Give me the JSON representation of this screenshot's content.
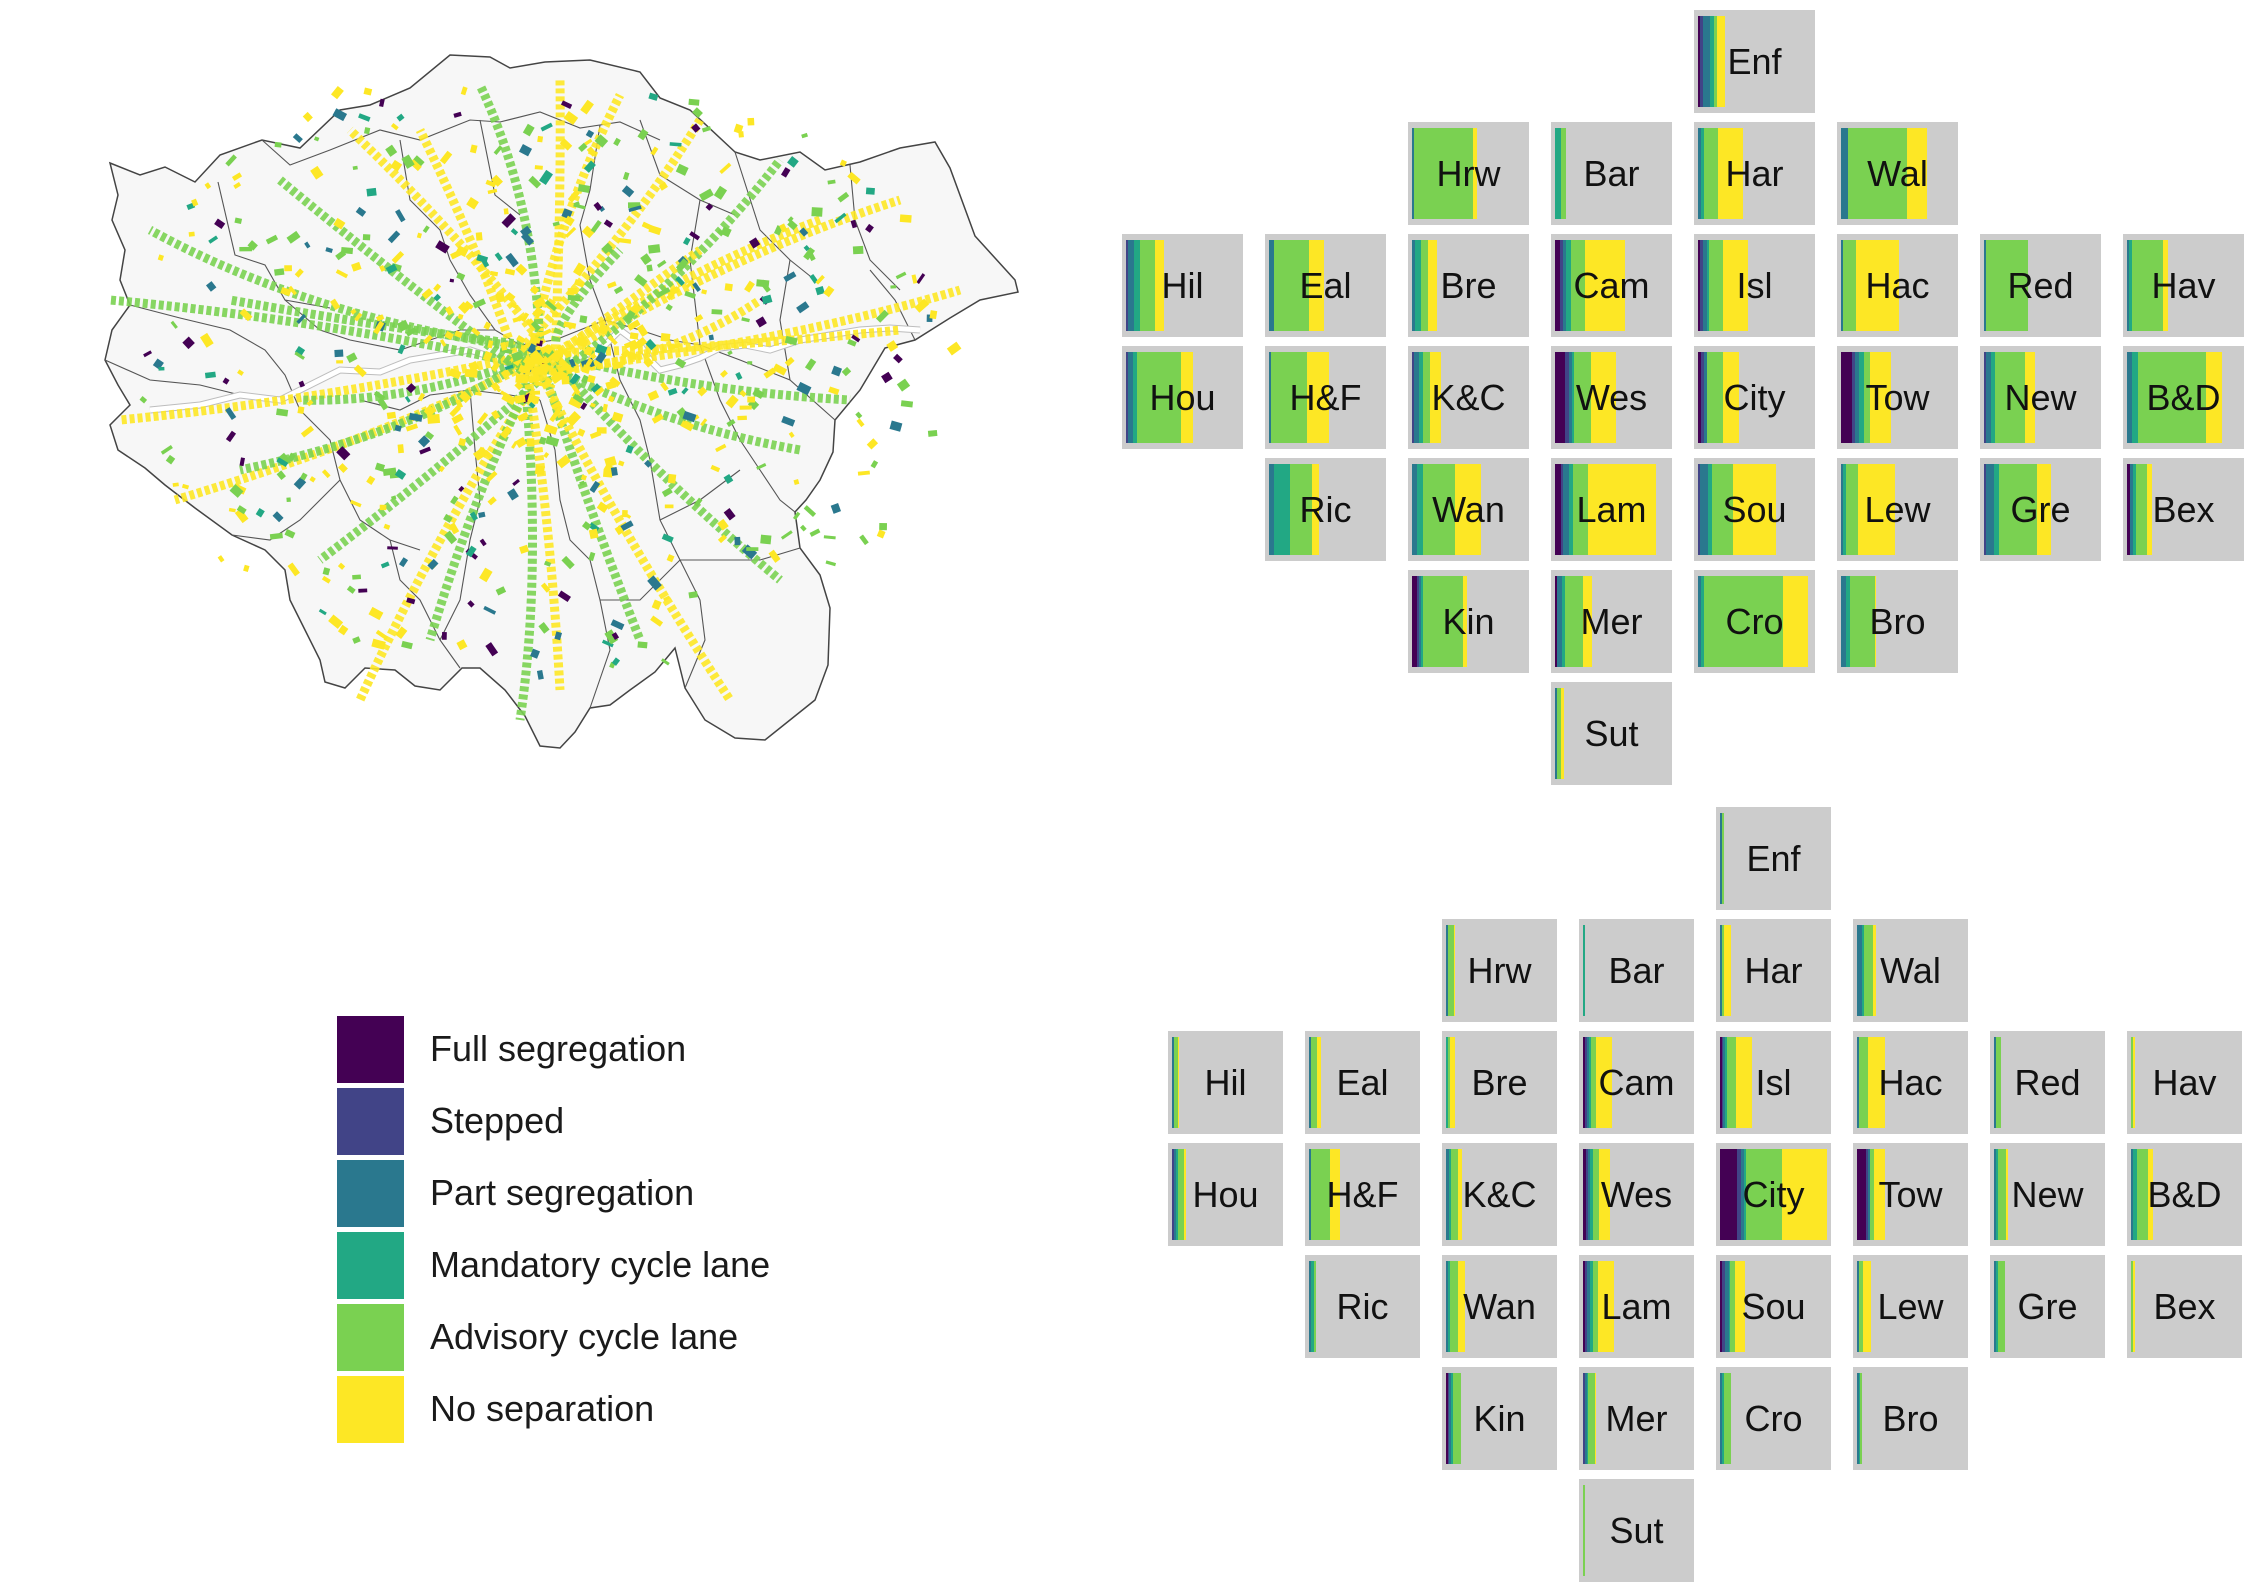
{
  "colors": {
    "full": "#440154",
    "stepped": "#414487",
    "part": "#2a788e",
    "mandatory": "#22a884",
    "advisory": "#7ad151",
    "none": "#fde725",
    "tile_bg": "#cccccc",
    "borough_fill": "#f7f7f7",
    "borough_stroke": "#444444",
    "river": "#ffffff"
  },
  "legend": [
    {
      "key": "full",
      "label": "Full segregation"
    },
    {
      "key": "stepped",
      "label": "Stepped"
    },
    {
      "key": "part",
      "label": "Part segregation"
    },
    {
      "key": "mandatory",
      "label": "Mandatory cycle lane"
    },
    {
      "key": "advisory",
      "label": "Advisory cycle lane"
    },
    {
      "key": "none",
      "label": "No separation"
    }
  ],
  "grids": [
    {
      "name": "top-grid",
      "boroughs": [
        {
          "label": "Enf",
          "row": 0,
          "col": 4,
          "shares": {
            "full": 0.02,
            "stepped": 0.02,
            "part": 0.07,
            "mandatory": 0.03,
            "advisory": 0.03,
            "none": 0.07
          }
        },
        {
          "label": "Hrw",
          "row": 1,
          "col": 2,
          "shares": {
            "full": 0,
            "stepped": 0,
            "part": 0.01,
            "mandatory": 0,
            "advisory": 0.53,
            "none": 0.03
          }
        },
        {
          "label": "Bar",
          "row": 1,
          "col": 3,
          "shares": {
            "full": 0,
            "stepped": 0,
            "part": 0,
            "mandatory": 0.05,
            "advisory": 0.05,
            "none": 0
          }
        },
        {
          "label": "Har",
          "row": 1,
          "col": 4,
          "shares": {
            "full": 0,
            "stepped": 0,
            "part": 0.03,
            "mandatory": 0.02,
            "advisory": 0.13,
            "none": 0.22
          }
        },
        {
          "label": "Wal",
          "row": 1,
          "col": 5,
          "shares": {
            "full": 0,
            "stepped": 0,
            "part": 0.06,
            "mandatory": 0,
            "advisory": 0.52,
            "none": 0.18
          }
        },
        {
          "label": "Hil",
          "row": 2,
          "col": 0,
          "shares": {
            "full": 0,
            "stepped": 0.02,
            "part": 0.05,
            "mandatory": 0.05,
            "advisory": 0.14,
            "none": 0.08
          }
        },
        {
          "label": "Eal",
          "row": 2,
          "col": 1,
          "shares": {
            "full": 0,
            "stepped": 0,
            "part": 0.04,
            "mandatory": 0,
            "advisory": 0.31,
            "none": 0.14
          }
        },
        {
          "label": "Bre",
          "row": 2,
          "col": 2,
          "shares": {
            "full": 0,
            "stepped": 0,
            "part": 0.03,
            "mandatory": 0.05,
            "advisory": 0.06,
            "none": 0.08
          }
        },
        {
          "label": "Cam",
          "row": 2,
          "col": 3,
          "shares": {
            "full": 0.04,
            "stepped": 0.03,
            "part": 0.03,
            "mandatory": 0.04,
            "advisory": 0.13,
            "none": 0.35
          }
        },
        {
          "label": "Isl",
          "row": 2,
          "col": 4,
          "shares": {
            "full": 0.02,
            "stepped": 0.02,
            "part": 0.04,
            "mandatory": 0.02,
            "advisory": 0.12,
            "none": 0.22
          }
        },
        {
          "label": "Hac",
          "row": 2,
          "col": 5,
          "shares": {
            "full": 0,
            "stepped": 0,
            "part": 0.02,
            "mandatory": 0,
            "advisory": 0.11,
            "none": 0.38
          }
        },
        {
          "label": "Red",
          "row": 2,
          "col": 6,
          "shares": {
            "full": 0,
            "stepped": 0,
            "part": 0.02,
            "mandatory": 0,
            "advisory": 0.37,
            "none": 0
          }
        },
        {
          "label": "Hav",
          "row": 2,
          "col": 7,
          "shares": {
            "full": 0,
            "stepped": 0,
            "part": 0.02,
            "mandatory": 0.02,
            "advisory": 0.28,
            "none": 0.04
          }
        },
        {
          "label": "Hou",
          "row": 3,
          "col": 0,
          "shares": {
            "full": 0,
            "stepped": 0.02,
            "part": 0.04,
            "mandatory": 0.04,
            "advisory": 0.39,
            "none": 0.1
          }
        },
        {
          "label": "H&F",
          "row": 3,
          "col": 1,
          "shares": {
            "full": 0,
            "stepped": 0,
            "part": 0.02,
            "mandatory": 0,
            "advisory": 0.32,
            "none": 0.19
          }
        },
        {
          "label": "K&C",
          "row": 3,
          "col": 2,
          "shares": {
            "full": 0,
            "stepped": 0.02,
            "part": 0.04,
            "mandatory": 0.04,
            "advisory": 0.06,
            "none": 0.1
          }
        },
        {
          "label": "Wes",
          "row": 3,
          "col": 3,
          "shares": {
            "full": 0.09,
            "stepped": 0.03,
            "part": 0.03,
            "mandatory": 0.02,
            "advisory": 0.15,
            "none": 0.22
          }
        },
        {
          "label": "City",
          "row": 3,
          "col": 4,
          "shares": {
            "full": 0.03,
            "stepped": 0.02,
            "part": 0.03,
            "mandatory": 0,
            "advisory": 0.14,
            "none": 0.14
          }
        },
        {
          "label": "Tow",
          "row": 3,
          "col": 5,
          "shares": {
            "full": 0.1,
            "stepped": 0.02,
            "part": 0.04,
            "mandatory": 0.04,
            "advisory": 0.06,
            "none": 0.18
          }
        },
        {
          "label": "New",
          "row": 3,
          "col": 6,
          "shares": {
            "full": 0,
            "stepped": 0.02,
            "part": 0.04,
            "mandatory": 0.04,
            "advisory": 0.26,
            "none": 0.09
          }
        },
        {
          "label": "B&D",
          "row": 3,
          "col": 7,
          "shares": {
            "full": 0,
            "stepped": 0,
            "part": 0.04,
            "mandatory": 0.06,
            "advisory": 0.6,
            "none": 0.14
          }
        },
        {
          "label": "Ric",
          "row": 4,
          "col": 1,
          "shares": {
            "full": 0,
            "stepped": 0,
            "part": 0.04,
            "mandatory": 0.15,
            "advisory": 0.19,
            "none": 0.06
          }
        },
        {
          "label": "Wan",
          "row": 4,
          "col": 2,
          "shares": {
            "full": 0,
            "stepped": 0,
            "part": 0.04,
            "mandatory": 0.06,
            "advisory": 0.28,
            "none": 0.23
          }
        },
        {
          "label": "Lam",
          "row": 4,
          "col": 3,
          "shares": {
            "full": 0.05,
            "stepped": 0.02,
            "part": 0.05,
            "mandatory": 0.04,
            "advisory": 0.13,
            "none": 0.6
          }
        },
        {
          "label": "Sou",
          "row": 4,
          "col": 4,
          "shares": {
            "full": 0,
            "stepped": 0.02,
            "part": 0.07,
            "mandatory": 0.03,
            "advisory": 0.19,
            "none": 0.38
          }
        },
        {
          "label": "Lew",
          "row": 4,
          "col": 5,
          "shares": {
            "full": 0,
            "stepped": 0,
            "part": 0.02,
            "mandatory": 0.02,
            "advisory": 0.11,
            "none": 0.33
          }
        },
        {
          "label": "Gre",
          "row": 4,
          "col": 6,
          "shares": {
            "full": 0,
            "stepped": 0.02,
            "part": 0.07,
            "mandatory": 0.04,
            "advisory": 0.34,
            "none": 0.12
          }
        },
        {
          "label": "Bex",
          "row": 4,
          "col": 7,
          "shares": {
            "full": 0.03,
            "stepped": 0,
            "part": 0.02,
            "mandatory": 0.03,
            "advisory": 0.1,
            "none": 0.04
          }
        },
        {
          "label": "Kin",
          "row": 5,
          "col": 2,
          "shares": {
            "full": 0.04,
            "stepped": 0.02,
            "part": 0.02,
            "mandatory": 0.02,
            "advisory": 0.35,
            "none": 0.04
          }
        },
        {
          "label": "Mer",
          "row": 5,
          "col": 3,
          "shares": {
            "full": 0.02,
            "stepped": 0,
            "part": 0.04,
            "mandatory": 0.03,
            "advisory": 0.16,
            "none": 0.08
          }
        },
        {
          "label": "Cro",
          "row": 5,
          "col": 4,
          "shares": {
            "full": 0,
            "stepped": 0,
            "part": 0.03,
            "mandatory": 0.02,
            "advisory": 0.7,
            "none": 0.22
          }
        },
        {
          "label": "Bro",
          "row": 5,
          "col": 5,
          "shares": {
            "full": 0,
            "stepped": 0,
            "part": 0.04,
            "mandatory": 0.04,
            "advisory": 0.22,
            "none": 0.01
          }
        },
        {
          "label": "Sut",
          "row": 6,
          "col": 3,
          "shares": {
            "full": 0,
            "stepped": 0,
            "part": 0.01,
            "mandatory": 0,
            "advisory": 0.04,
            "none": 0.03
          }
        }
      ]
    },
    {
      "name": "bottom-grid",
      "boroughs": [
        {
          "label": "Enf",
          "row": 0,
          "col": 4,
          "shares": {
            "full": 0,
            "stepped": 0,
            "part": 0.01,
            "mandatory": 0,
            "advisory": 0.02,
            "none": 0
          }
        },
        {
          "label": "Hrw",
          "row": 1,
          "col": 2,
          "shares": {
            "full": 0,
            "stepped": 0,
            "part": 0.01,
            "mandatory": 0,
            "advisory": 0.06,
            "none": 0.01
          }
        },
        {
          "label": "Bar",
          "row": 1,
          "col": 3,
          "shares": {
            "full": 0,
            "stepped": 0,
            "part": 0,
            "mandatory": 0.02,
            "advisory": 0,
            "none": 0
          }
        },
        {
          "label": "Har",
          "row": 1,
          "col": 4,
          "shares": {
            "full": 0,
            "stepped": 0,
            "part": 0.01,
            "mandatory": 0,
            "advisory": 0.02,
            "none": 0.07
          }
        },
        {
          "label": "Wal",
          "row": 1,
          "col": 5,
          "shares": {
            "full": 0,
            "stepped": 0,
            "part": 0.05,
            "mandatory": 0.01,
            "advisory": 0.09,
            "none": 0.02
          }
        },
        {
          "label": "Hil",
          "row": 2,
          "col": 0,
          "shares": {
            "full": 0,
            "stepped": 0,
            "part": 0.01,
            "mandatory": 0,
            "advisory": 0.04,
            "none": 0.01
          }
        },
        {
          "label": "Eal",
          "row": 2,
          "col": 1,
          "shares": {
            "full": 0,
            "stepped": 0,
            "part": 0.01,
            "mandatory": 0,
            "advisory": 0.06,
            "none": 0.04
          }
        },
        {
          "label": "Bre",
          "row": 2,
          "col": 2,
          "shares": {
            "full": 0,
            "stepped": 0,
            "part": 0,
            "mandatory": 0.02,
            "advisory": 0.02,
            "none": 0.04
          }
        },
        {
          "label": "Cam",
          "row": 2,
          "col": 3,
          "shares": {
            "full": 0.01,
            "stepped": 0.02,
            "part": 0.02,
            "mandatory": 0.02,
            "advisory": 0.05,
            "none": 0.15
          }
        },
        {
          "label": "Isl",
          "row": 2,
          "col": 4,
          "shares": {
            "full": 0.01,
            "stepped": 0.01,
            "part": 0.02,
            "mandatory": 0.01,
            "advisory": 0.09,
            "none": 0.15
          }
        },
        {
          "label": "Hac",
          "row": 2,
          "col": 5,
          "shares": {
            "full": 0,
            "stepped": 0,
            "part": 0.02,
            "mandatory": 0,
            "advisory": 0.08,
            "none": 0.16
          }
        },
        {
          "label": "Red",
          "row": 2,
          "col": 6,
          "shares": {
            "full": 0,
            "stepped": 0,
            "part": 0.01,
            "mandatory": 0,
            "advisory": 0.05,
            "none": 0
          }
        },
        {
          "label": "Hav",
          "row": 2,
          "col": 7,
          "shares": {
            "full": 0,
            "stepped": 0,
            "part": 0,
            "mandatory": 0,
            "advisory": 0.02,
            "none": 0.01
          }
        },
        {
          "label": "Hou",
          "row": 3,
          "col": 0,
          "shares": {
            "full": 0,
            "stepped": 0.02,
            "part": 0.02,
            "mandatory": 0.02,
            "advisory": 0.05,
            "none": 0.02
          }
        },
        {
          "label": "H&F",
          "row": 3,
          "col": 1,
          "shares": {
            "full": 0,
            "stepped": 0,
            "part": 0.01,
            "mandatory": 0,
            "advisory": 0.18,
            "none": 0.1
          }
        },
        {
          "label": "K&C",
          "row": 3,
          "col": 2,
          "shares": {
            "full": 0,
            "stepped": 0,
            "part": 0.03,
            "mandatory": 0.02,
            "advisory": 0.06,
            "none": 0.04
          }
        },
        {
          "label": "Wes",
          "row": 3,
          "col": 3,
          "shares": {
            "full": 0.03,
            "stepped": 0.02,
            "part": 0.02,
            "mandatory": 0.02,
            "advisory": 0.06,
            "none": 0.1
          }
        },
        {
          "label": "City",
          "row": 3,
          "col": 4,
          "shares": {
            "full": 0.16,
            "stepped": 0.04,
            "part": 0.02,
            "mandatory": 0.02,
            "advisory": 0.34,
            "none": 0.42
          }
        },
        {
          "label": "Tow",
          "row": 3,
          "col": 5,
          "shares": {
            "full": 0.08,
            "stepped": 0.02,
            "part": 0.02,
            "mandatory": 0,
            "advisory": 0.04,
            "none": 0.1
          }
        },
        {
          "label": "New",
          "row": 3,
          "col": 6,
          "shares": {
            "full": 0,
            "stepped": 0,
            "part": 0.02,
            "mandatory": 0.02,
            "advisory": 0.07,
            "none": 0.02
          }
        },
        {
          "label": "B&D",
          "row": 3,
          "col": 7,
          "shares": {
            "full": 0,
            "stepped": 0,
            "part": 0.02,
            "mandatory": 0.04,
            "advisory": 0.1,
            "none": 0.05
          }
        },
        {
          "label": "Ric",
          "row": 4,
          "col": 1,
          "shares": {
            "full": 0,
            "stepped": 0,
            "part": 0.02,
            "mandatory": 0.03,
            "advisory": 0.01,
            "none": 0
          }
        },
        {
          "label": "Wan",
          "row": 4,
          "col": 2,
          "shares": {
            "full": 0,
            "stepped": 0,
            "part": 0.02,
            "mandatory": 0.02,
            "advisory": 0.07,
            "none": 0.07
          }
        },
        {
          "label": "Lam",
          "row": 4,
          "col": 3,
          "shares": {
            "full": 0.02,
            "stepped": 0.02,
            "part": 0.03,
            "mandatory": 0.02,
            "advisory": 0.05,
            "none": 0.15
          }
        },
        {
          "label": "Sou",
          "row": 4,
          "col": 4,
          "shares": {
            "full": 0.02,
            "stepped": 0.03,
            "part": 0.03,
            "mandatory": 0.01,
            "advisory": 0.05,
            "none": 0.09
          }
        },
        {
          "label": "Lew",
          "row": 4,
          "col": 5,
          "shares": {
            "full": 0,
            "stepped": 0,
            "part": 0.02,
            "mandatory": 0,
            "advisory": 0.04,
            "none": 0.07
          }
        },
        {
          "label": "Gre",
          "row": 4,
          "col": 6,
          "shares": {
            "full": 0,
            "stepped": 0,
            "part": 0.02,
            "mandatory": 0.02,
            "advisory": 0.06,
            "none": 0
          }
        },
        {
          "label": "Bex",
          "row": 4,
          "col": 7,
          "shares": {
            "full": 0,
            "stepped": 0,
            "part": 0,
            "mandatory": 0,
            "advisory": 0.02,
            "none": 0.01
          }
        },
        {
          "label": "Kin",
          "row": 5,
          "col": 2,
          "shares": {
            "full": 0.01,
            "stepped": 0.01,
            "part": 0.02,
            "mandatory": 0.02,
            "advisory": 0.07,
            "none": 0
          }
        },
        {
          "label": "Mer",
          "row": 5,
          "col": 3,
          "shares": {
            "full": 0,
            "stepped": 0.01,
            "part": 0.02,
            "mandatory": 0.01,
            "advisory": 0.06,
            "none": 0.01
          }
        },
        {
          "label": "Cro",
          "row": 5,
          "col": 4,
          "shares": {
            "full": 0,
            "stepped": 0,
            "part": 0.02,
            "mandatory": 0.02,
            "advisory": 0.06,
            "none": 0
          }
        },
        {
          "label": "Bro",
          "row": 5,
          "col": 5,
          "shares": {
            "full": 0,
            "stepped": 0,
            "part": 0.01,
            "mandatory": 0.01,
            "advisory": 0.02,
            "none": 0
          }
        },
        {
          "label": "Sut",
          "row": 6,
          "col": 3,
          "shares": {
            "full": 0,
            "stepped": 0,
            "part": 0,
            "mandatory": 0,
            "advisory": 0.02,
            "none": 0
          }
        }
      ]
    }
  ]
}
